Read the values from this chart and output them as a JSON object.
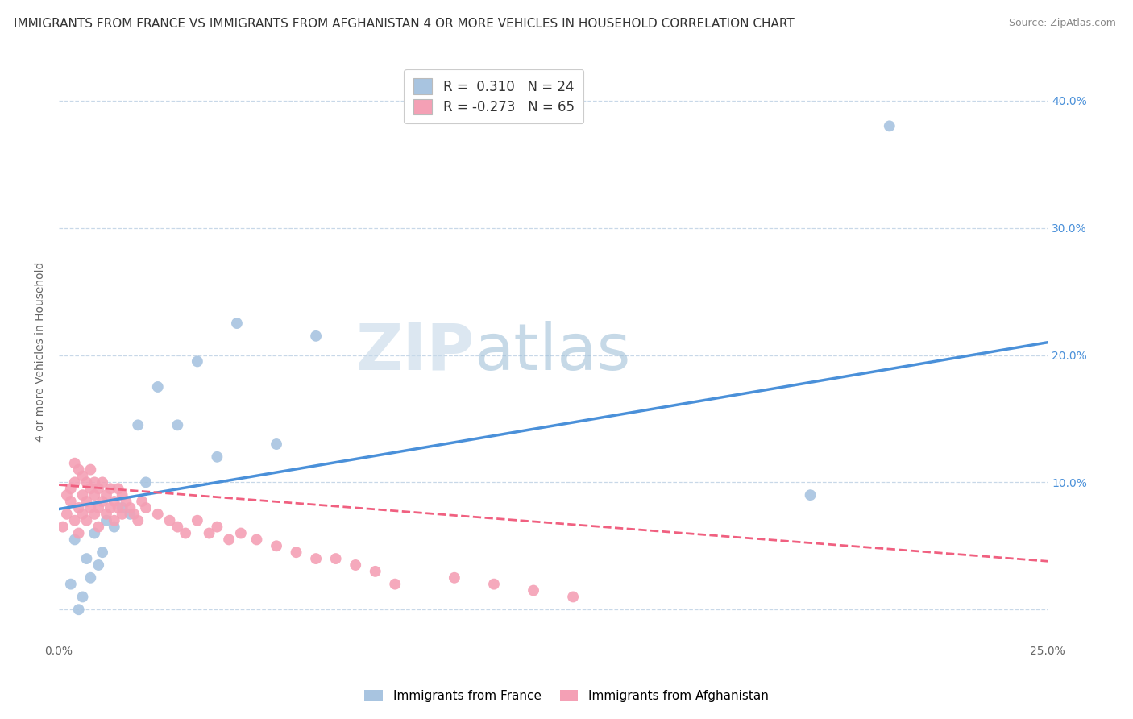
{
  "title": "IMMIGRANTS FROM FRANCE VS IMMIGRANTS FROM AFGHANISTAN 4 OR MORE VEHICLES IN HOUSEHOLD CORRELATION CHART",
  "source": "Source: ZipAtlas.com",
  "ylabel": "4 or more Vehicles in Household",
  "xlim": [
    0.0,
    0.25
  ],
  "ylim": [
    -0.025,
    0.43
  ],
  "yticks": [
    0.0,
    0.1,
    0.2,
    0.3,
    0.4
  ],
  "france_R": 0.31,
  "france_N": 24,
  "afghanistan_R": -0.273,
  "afghanistan_N": 65,
  "france_color": "#a8c4e0",
  "afghanistan_color": "#f4a0b5",
  "france_line_color": "#4a90d9",
  "afghanistan_line_color": "#f06080",
  "legend_label_france": "Immigrants from France",
  "legend_label_afghanistan": "Immigrants from Afghanistan",
  "france_scatter_x": [
    0.003,
    0.004,
    0.005,
    0.006,
    0.007,
    0.008,
    0.009,
    0.01,
    0.011,
    0.012,
    0.014,
    0.016,
    0.018,
    0.02,
    0.022,
    0.025,
    0.03,
    0.035,
    0.04,
    0.045,
    0.055,
    0.065,
    0.19,
    0.21
  ],
  "france_scatter_y": [
    0.02,
    0.055,
    0.0,
    0.01,
    0.04,
    0.025,
    0.06,
    0.035,
    0.045,
    0.07,
    0.065,
    0.08,
    0.075,
    0.145,
    0.1,
    0.175,
    0.145,
    0.195,
    0.12,
    0.225,
    0.13,
    0.215,
    0.09,
    0.38
  ],
  "afghanistan_scatter_x": [
    0.001,
    0.002,
    0.002,
    0.003,
    0.003,
    0.004,
    0.004,
    0.004,
    0.005,
    0.005,
    0.005,
    0.006,
    0.006,
    0.006,
    0.007,
    0.007,
    0.007,
    0.008,
    0.008,
    0.008,
    0.009,
    0.009,
    0.009,
    0.01,
    0.01,
    0.01,
    0.011,
    0.011,
    0.012,
    0.012,
    0.013,
    0.013,
    0.014,
    0.014,
    0.015,
    0.015,
    0.016,
    0.016,
    0.017,
    0.018,
    0.019,
    0.02,
    0.021,
    0.022,
    0.025,
    0.028,
    0.03,
    0.032,
    0.035,
    0.038,
    0.04,
    0.043,
    0.046,
    0.05,
    0.055,
    0.06,
    0.065,
    0.07,
    0.075,
    0.08,
    0.085,
    0.1,
    0.11,
    0.12,
    0.13
  ],
  "afghanistan_scatter_y": [
    0.065,
    0.075,
    0.09,
    0.085,
    0.095,
    0.07,
    0.1,
    0.115,
    0.06,
    0.08,
    0.11,
    0.075,
    0.09,
    0.105,
    0.07,
    0.085,
    0.1,
    0.08,
    0.095,
    0.11,
    0.075,
    0.09,
    0.1,
    0.08,
    0.095,
    0.065,
    0.085,
    0.1,
    0.075,
    0.09,
    0.08,
    0.095,
    0.07,
    0.085,
    0.08,
    0.095,
    0.075,
    0.09,
    0.085,
    0.08,
    0.075,
    0.07,
    0.085,
    0.08,
    0.075,
    0.07,
    0.065,
    0.06,
    0.07,
    0.06,
    0.065,
    0.055,
    0.06,
    0.055,
    0.05,
    0.045,
    0.04,
    0.04,
    0.035,
    0.03,
    0.02,
    0.025,
    0.02,
    0.015,
    0.01
  ],
  "france_line_x0": 0.0,
  "france_line_y0": 0.079,
  "france_line_x1": 0.25,
  "france_line_y1": 0.21,
  "afghanistan_line_x0": 0.0,
  "afghanistan_line_y0": 0.098,
  "afghanistan_line_x1": 0.25,
  "afghanistan_line_y1": 0.038,
  "watermark_zip": "ZIP",
  "watermark_atlas": "atlas",
  "background_color": "#ffffff",
  "grid_color": "#c8d8e8",
  "title_fontsize": 11,
  "axis_fontsize": 10,
  "tick_fontsize": 10,
  "marker_size": 100
}
